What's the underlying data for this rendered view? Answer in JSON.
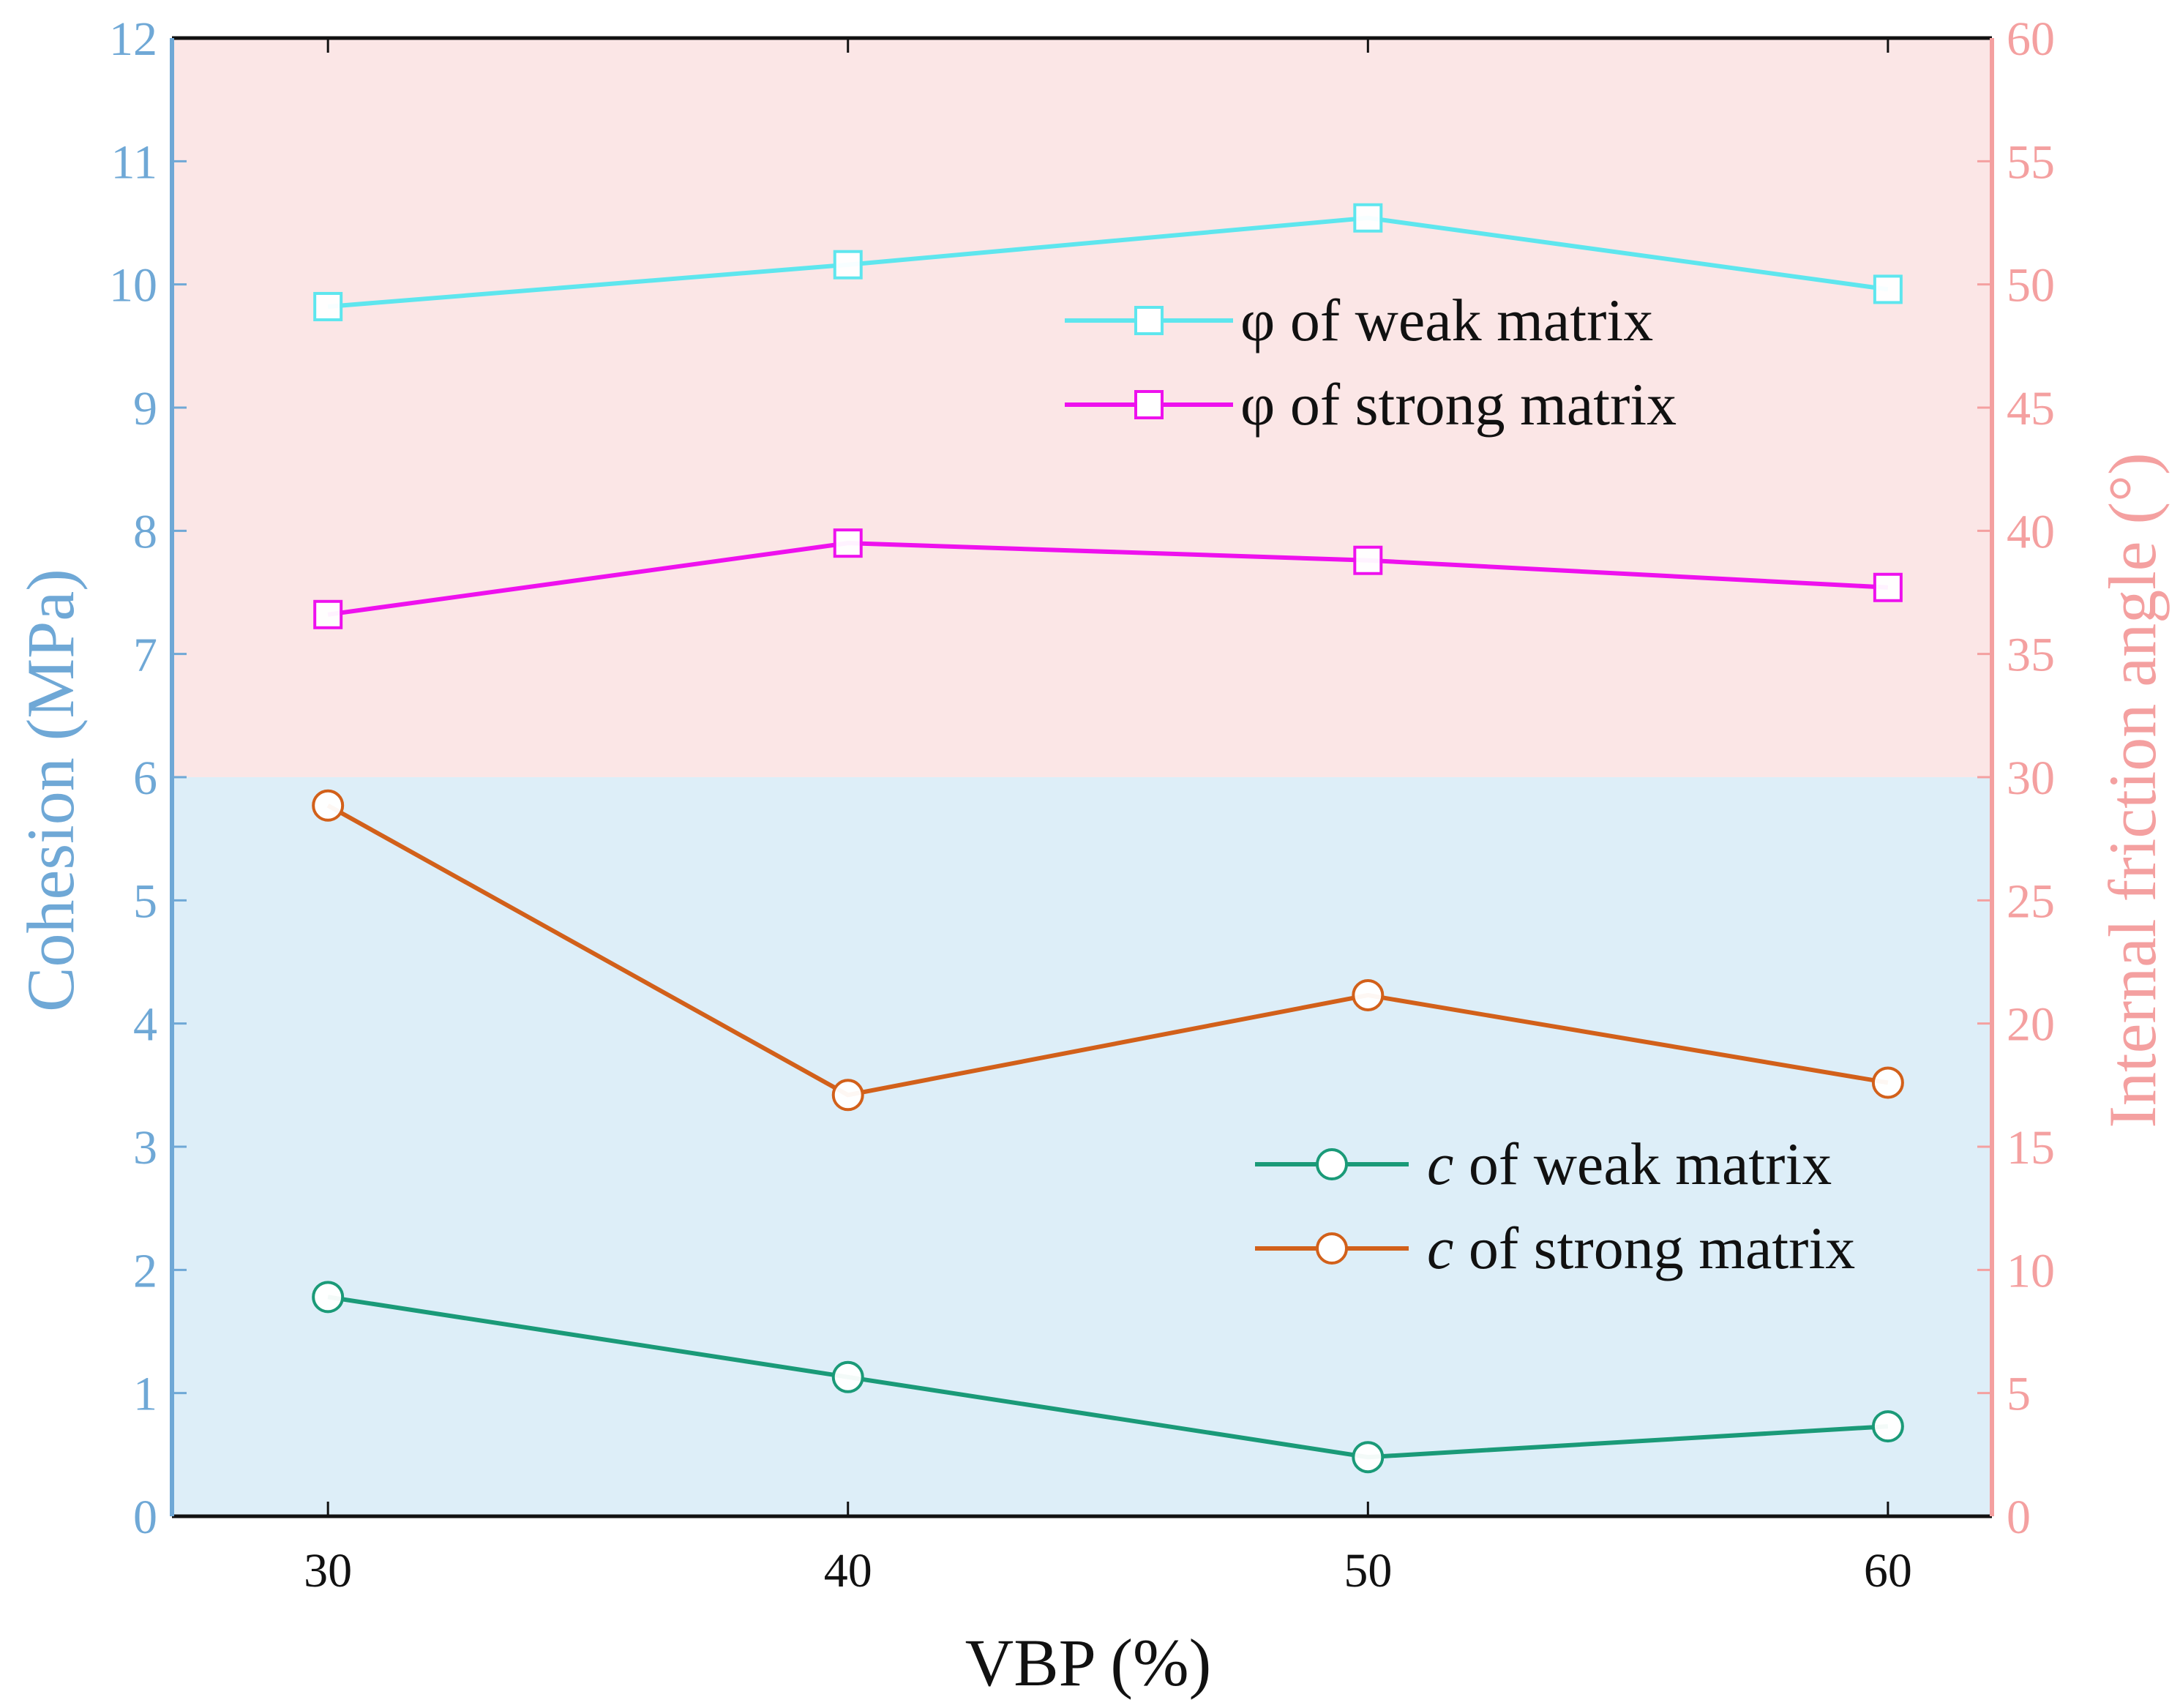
{
  "chart_data": {
    "type": "line",
    "title": "",
    "xlabel": "VBP (%)",
    "ylabel_left": "Cohesion (MPa)",
    "ylabel_right": "Internal friction angle (°)",
    "x": [
      30,
      40,
      50,
      60
    ],
    "xlim": [
      27,
      62
    ],
    "ylim_left": [
      0,
      12
    ],
    "ylim_right": [
      0,
      60
    ],
    "xticks": [
      "30",
      "40",
      "50",
      "60"
    ],
    "yticks_left": [
      "0",
      "1",
      "2",
      "3",
      "4",
      "5",
      "6",
      "7",
      "8",
      "9",
      "10",
      "11",
      "12"
    ],
    "yticks_right": [
      "0",
      "5",
      "10",
      "15",
      "20",
      "25",
      "30",
      "35",
      "40",
      "45",
      "50",
      "55",
      "60"
    ],
    "background_bands": [
      {
        "axis": "left",
        "from": 6,
        "to": 12,
        "color": "#fbe6e6"
      },
      {
        "axis": "left",
        "from": 0,
        "to": 6,
        "color": "#ddeef8"
      }
    ],
    "series": [
      {
        "name": "φ of weak matrix",
        "axis": "right",
        "marker": "square",
        "color": "#5ee6ee",
        "values": [
          49.1,
          50.8,
          52.7,
          49.8
        ]
      },
      {
        "name": "φ of strong matrix",
        "axis": "right",
        "marker": "square",
        "color": "#ee11ee",
        "values": [
          36.6,
          39.5,
          38.8,
          37.7
        ]
      },
      {
        "name": "c of weak matrix",
        "axis": "left",
        "marker": "circle",
        "color": "#1a9a78",
        "values": [
          1.78,
          1.13,
          0.48,
          0.73
        ]
      },
      {
        "name": "c of strong matrix",
        "axis": "left",
        "marker": "circle",
        "color": "#d2601a",
        "values": [
          5.77,
          3.42,
          4.23,
          3.52
        ]
      }
    ],
    "legend": [
      {
        "italic_prefix": "",
        "text": "φ of weak matrix"
      },
      {
        "italic_prefix": "",
        "text": "φ of strong matrix"
      },
      {
        "italic_prefix": "c",
        "text": " of weak matrix"
      },
      {
        "italic_prefix": "c",
        "text": " of strong matrix"
      }
    ],
    "legend_position": "upper-right and lower-right",
    "colors": {
      "left_axis": "#6fa8d6",
      "right_axis": "#f4a0a0",
      "frame": "#111111"
    }
  }
}
